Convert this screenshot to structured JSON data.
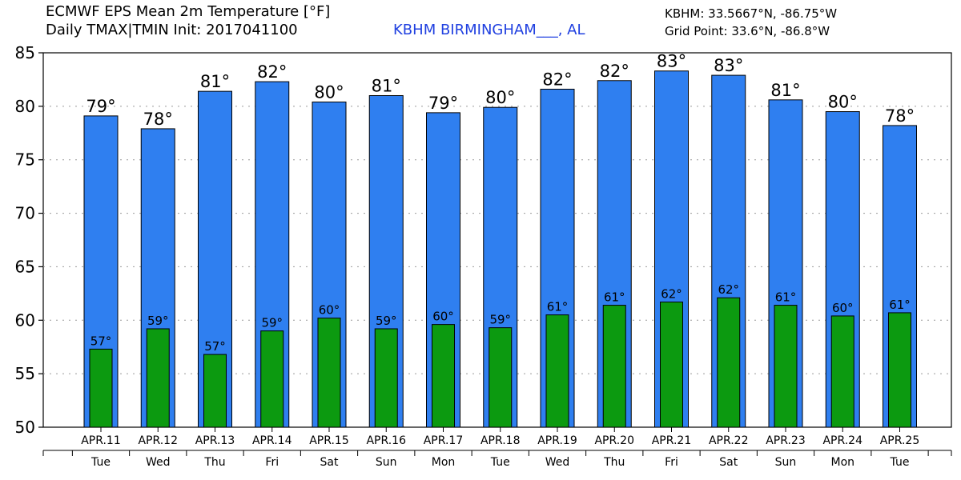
{
  "header": {
    "title_line1": "ECMWF EPS Mean 2m Temperature [°F]",
    "title_line2": "Daily TMAX|TMIN Init: 2017041100",
    "station": "KBHM BIRMINGHAM___, AL",
    "station_coords": "KBHM: 33.5667°N, -86.75°W",
    "grid_point": "Grid Point: 33.6°N, -86.8°W"
  },
  "colors": {
    "tmax_bar": "#2f7ff0",
    "tmin_bar": "#0c9a10",
    "station_text": "#2040e0"
  },
  "chart_data": {
    "type": "bar",
    "categories": [
      "APR.11",
      "APR.12",
      "APR.13",
      "APR.14",
      "APR.15",
      "APR.16",
      "APR.17",
      "APR.18",
      "APR.19",
      "APR.20",
      "APR.21",
      "APR.22",
      "APR.23",
      "APR.24",
      "APR.25"
    ],
    "weekdays": [
      "Tue",
      "Wed",
      "Thu",
      "Fri",
      "Sat",
      "Sun",
      "Mon",
      "Tue",
      "Wed",
      "Thu",
      "Fri",
      "Sat",
      "Sun",
      "Mon",
      "Tue"
    ],
    "series": [
      {
        "values": [
          79.1,
          77.9,
          81.4,
          82.3,
          80.4,
          81.0,
          79.4,
          79.9,
          81.6,
          82.4,
          83.3,
          82.9,
          80.6,
          79.5,
          78.2
        ],
        "labels": [
          "79°",
          "78°",
          "81°",
          "82°",
          "80°",
          "81°",
          "79°",
          "80°",
          "82°",
          "82°",
          "83°",
          "83°",
          "81°",
          "80°",
          "78°"
        ]
      },
      {
        "values": [
          57.3,
          59.2,
          56.8,
          59.0,
          60.2,
          59.2,
          59.6,
          59.3,
          60.5,
          61.4,
          61.7,
          62.1,
          61.4,
          60.4,
          60.7
        ],
        "labels": [
          "57°",
          "59°",
          "57°",
          "59°",
          "60°",
          "59°",
          "60°",
          "59°",
          "61°",
          "61°",
          "62°",
          "62°",
          "61°",
          "60°",
          "61°"
        ]
      }
    ],
    "xlabel": "",
    "ylabel": "",
    "ylim": [
      50,
      85
    ],
    "yticks": [
      50,
      55,
      60,
      65,
      70,
      75,
      80,
      85
    ],
    "grid": true
  }
}
